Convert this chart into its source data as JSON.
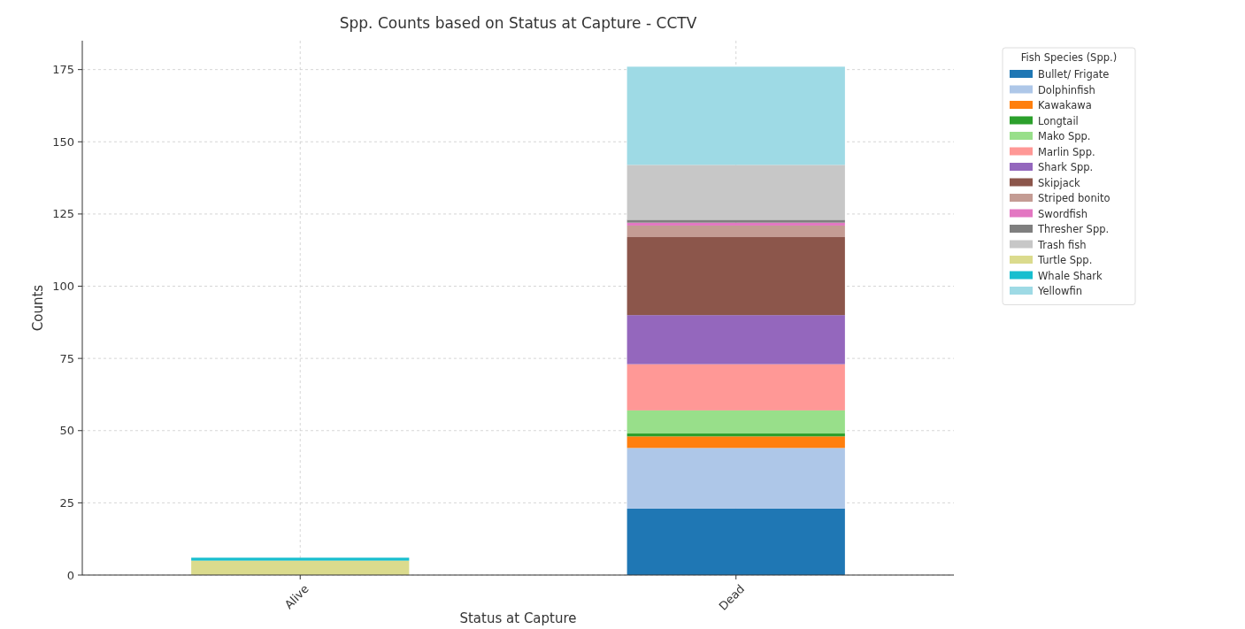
{
  "chart_data": {
    "type": "bar",
    "title": "Spp. Counts based on Status at Capture - CCTV",
    "xlabel": "Status at Capture",
    "ylabel": "Counts",
    "legend_title": "Fish Species (Spp.)",
    "categories": [
      "Alive",
      "Dead"
    ],
    "stacked": true,
    "ylim": [
      0,
      185
    ],
    "yticks": [
      0,
      25,
      50,
      75,
      100,
      125,
      150,
      175
    ],
    "grid": true,
    "legend": "top right",
    "series": [
      {
        "name": "Bullet/ Frigate",
        "color": "#1f77b4",
        "values": [
          0,
          23
        ]
      },
      {
        "name": "Dolphinfish",
        "color": "#aec7e8",
        "values": [
          0,
          21
        ]
      },
      {
        "name": "Kawakawa",
        "color": "#ff7f0e",
        "values": [
          0,
          4
        ]
      },
      {
        "name": "Longtail",
        "color": "#2ca02c",
        "values": [
          0,
          1
        ]
      },
      {
        "name": "Mako Spp.",
        "color": "#98df8a",
        "values": [
          0,
          8
        ]
      },
      {
        "name": "Marlin Spp.",
        "color": "#ff9896",
        "values": [
          0,
          16
        ]
      },
      {
        "name": "Shark Spp.",
        "color": "#9467bd",
        "values": [
          0,
          17
        ]
      },
      {
        "name": "Skipjack",
        "color": "#8c564b",
        "values": [
          0,
          27
        ]
      },
      {
        "name": "Striped bonito",
        "color": "#c49c94",
        "values": [
          0,
          4
        ]
      },
      {
        "name": "Swordfish",
        "color": "#e377c2",
        "values": [
          0,
          1
        ]
      },
      {
        "name": "Thresher Spp.",
        "color": "#7f7f7f",
        "values": [
          0,
          1
        ]
      },
      {
        "name": "Trash fish",
        "color": "#c7c7c7",
        "values": [
          0,
          19
        ]
      },
      {
        "name": "Turtle Spp.",
        "color": "#dbdb8d",
        "values": [
          5,
          0
        ]
      },
      {
        "name": "Whale Shark",
        "color": "#17becf",
        "values": [
          1,
          0
        ]
      },
      {
        "name": "Yellowfin",
        "color": "#9edae5",
        "values": [
          0,
          34
        ]
      }
    ]
  }
}
